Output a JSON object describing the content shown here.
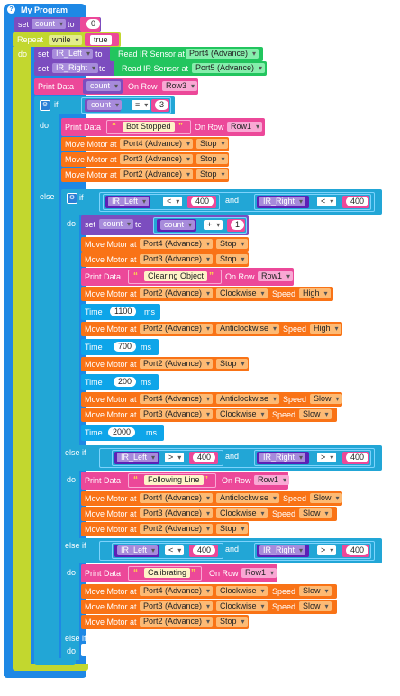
{
  "program": {
    "title": "My Program",
    "help_glyph": "?"
  },
  "colors": {
    "control": "#0ea5e9",
    "variable": "#7c4dbf",
    "variable_dark": "#5b21b6",
    "sensor": "#22c55e",
    "data": "#ec4899",
    "motor": "#f97316",
    "logic": "#22a6d6",
    "repeat": "#c2d72f"
  },
  "blocks": {
    "set1": {
      "set": "set",
      "var": "count",
      "to": "to",
      "value": "0"
    },
    "repeat": {
      "label": "Repeat",
      "mode": "while",
      "cond": "true",
      "do": "do"
    },
    "set_ir_left": {
      "set": "set",
      "var": "IR_Left",
      "to": "to",
      "sensor": "Read IR Sensor at",
      "port": "Port4 (Advance)"
    },
    "set_ir_right": {
      "set": "set",
      "var": "IR_Right",
      "to": "to",
      "sensor": "Read IR Sensor at",
      "port": "Port5 (Advance)"
    },
    "print_count": {
      "label": "Print Data",
      "var": "count",
      "on_row": "On Row",
      "row": "Row3"
    },
    "if1": {
      "if": "if",
      "left": "count",
      "op": "=",
      "right": "3",
      "do": "do",
      "else": "else"
    },
    "print_stopped": {
      "label": "Print Data",
      "text": "Bot Stopped",
      "on_row": "On Row",
      "row": "Row1"
    },
    "motor_stop_1": {
      "label": "Move Motor at",
      "port": "Port4 (Advance)",
      "action": "Stop"
    },
    "motor_stop_2": {
      "label": "Move Motor at",
      "port": "Port3 (Advance)",
      "action": "Stop"
    },
    "motor_stop_3": {
      "label": "Move Motor at",
      "port": "Port2 (Advance)",
      "action": "Stop"
    },
    "if2": {
      "if": "if",
      "l1": "IR_Left",
      "op1": "<",
      "v1": "400",
      "and": "and",
      "l2": "IR_Right",
      "op2": "<",
      "v2": "400",
      "do": "do"
    },
    "set_count2": {
      "set": "set",
      "var": "count",
      "to": "to",
      "inner_var": "count",
      "op": "+",
      "value": "1"
    },
    "m_a1": {
      "label": "Move Motor at",
      "port": "Port4 (Advance)",
      "action": "Stop"
    },
    "m_a2": {
      "label": "Move Motor at",
      "port": "Port3 (Advance)",
      "action": "Stop"
    },
    "print_clearing": {
      "label": "Print Data",
      "text": "Clearing Object",
      "on_row": "On Row",
      "row": "Row1"
    },
    "m_a3": {
      "label": "Move Motor at",
      "port": "Port2 (Advance)",
      "dir": "Clockwise",
      "speed_label": "Speed",
      "speed": "High"
    },
    "time1": {
      "label": "Time",
      "value": "1100",
      "unit": "ms"
    },
    "m_a4": {
      "label": "Move Motor at",
      "port": "Port2 (Advance)",
      "dir": "Anticlockwise",
      "speed_label": "Speed",
      "speed": "High"
    },
    "time2": {
      "label": "Time",
      "value": "700",
      "unit": "ms"
    },
    "m_a5": {
      "label": "Move Motor at",
      "port": "Port2 (Advance)",
      "action": "Stop"
    },
    "time3": {
      "label": "Time",
      "value": "200",
      "unit": "ms"
    },
    "m_a6": {
      "label": "Move Motor at",
      "port": "Port4 (Advance)",
      "dir": "Anticlockwise",
      "speed_label": "Speed",
      "speed": "Slow"
    },
    "m_a7": {
      "label": "Move Motor at",
      "port": "Port3 (Advance)",
      "dir": "Clockwise",
      "speed_label": "Speed",
      "speed": "Slow"
    },
    "time4": {
      "label": "Time",
      "value": "2000",
      "unit": "ms"
    },
    "elseif1": {
      "label": "else if",
      "l1": "IR_Left",
      "op1": ">",
      "v1": "400",
      "and": "and",
      "l2": "IR_Right",
      "op2": ">",
      "v2": "400",
      "do": "do"
    },
    "print_following": {
      "label": "Print Data",
      "text": "Following Line",
      "on_row": "On Row",
      "row": "Row1"
    },
    "m_b1": {
      "label": "Move Motor at",
      "port": "Port4 (Advance)",
      "dir": "Anticlockwise",
      "speed_label": "Speed",
      "speed": "Slow"
    },
    "m_b2": {
      "label": "Move Motor at",
      "port": "Port3 (Advance)",
      "dir": "Clockwise",
      "speed_label": "Speed",
      "speed": "Slow"
    },
    "m_b3": {
      "label": "Move Motor at",
      "port": "Port2 (Advance)",
      "action": "Stop"
    },
    "elseif2": {
      "label": "else if",
      "l1": "IR_Left",
      "op1": "<",
      "v1": "400",
      "and": "and",
      "l2": "IR_Right",
      "op2": ">",
      "v2": "400",
      "do": "do"
    },
    "print_calibrating": {
      "label": "Print Data",
      "text": "Calibrating",
      "on_row": "On Row",
      "row": "Row1"
    },
    "m_c1": {
      "label": "Move Motor at",
      "port": "Port4 (Advance)",
      "dir": "Clockwise",
      "speed_label": "Speed",
      "speed": "Slow"
    },
    "m_c2": {
      "label": "Move Motor at",
      "port": "Port3 (Advance)",
      "dir": "Clockwise",
      "speed_label": "Speed",
      "speed": "Slow"
    },
    "m_c3": {
      "label": "Move Motor at",
      "port": "Port2 (Advance)",
      "action": "Stop"
    },
    "elseif3": {
      "label": "else if",
      "do": "do"
    }
  }
}
